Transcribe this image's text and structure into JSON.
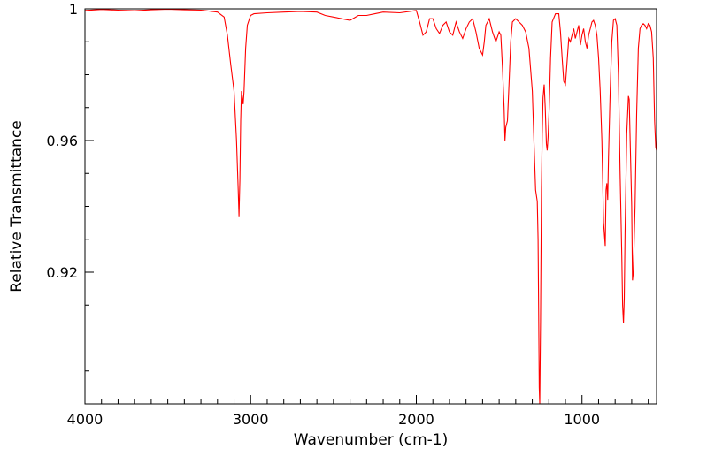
{
  "chart_data": {
    "type": "line",
    "title": "",
    "xlabel": "Wavenumber (cm-1)",
    "ylabel": "Relative Transmittance",
    "xlim": [
      4000,
      550
    ],
    "ylim": [
      0.88,
      1.0
    ],
    "x_reversed": true,
    "x_ticks": [
      {
        "value": 4000,
        "label": "4000"
      },
      {
        "value": 3000,
        "label": "3000"
      },
      {
        "value": 2000,
        "label": "2000"
      },
      {
        "value": 1000,
        "label": "1000"
      }
    ],
    "x_minor_step": 100,
    "y_ticks": [
      {
        "value": 1.0,
        "label": "1"
      },
      {
        "value": 0.96,
        "label": "0.96"
      },
      {
        "value": 0.92,
        "label": "0.92"
      }
    ],
    "y_minor_step": 0.01,
    "grid": false,
    "line_color": "#ff0000",
    "series": [
      {
        "points": [
          [
            4000,
            0.9995
          ],
          [
            3900,
            0.9998
          ],
          [
            3800,
            0.9996
          ],
          [
            3700,
            0.9994
          ],
          [
            3600,
            0.9997
          ],
          [
            3500,
            0.9999
          ],
          [
            3400,
            0.9997
          ],
          [
            3300,
            0.9996
          ],
          [
            3200,
            0.999
          ],
          [
            3160,
            0.9975
          ],
          [
            3140,
            0.992
          ],
          [
            3120,
            0.983
          ],
          [
            3100,
            0.975
          ],
          [
            3085,
            0.96
          ],
          [
            3075,
            0.945
          ],
          [
            3070,
            0.937
          ],
          [
            3065,
            0.948
          ],
          [
            3060,
            0.966
          ],
          [
            3055,
            0.975
          ],
          [
            3050,
            0.973
          ],
          [
            3045,
            0.971
          ],
          [
            3040,
            0.975
          ],
          [
            3030,
            0.988
          ],
          [
            3020,
            0.995
          ],
          [
            3000,
            0.998
          ],
          [
            2980,
            0.9985
          ],
          [
            2900,
            0.9988
          ],
          [
            2800,
            0.999
          ],
          [
            2700,
            0.9992
          ],
          [
            2600,
            0.999
          ],
          [
            2550,
            0.998
          ],
          [
            2500,
            0.9975
          ],
          [
            2450,
            0.997
          ],
          [
            2400,
            0.9965
          ],
          [
            2350,
            0.998
          ],
          [
            2300,
            0.998
          ],
          [
            2250,
            0.9985
          ],
          [
            2200,
            0.999
          ],
          [
            2100,
            0.9988
          ],
          [
            2000,
            0.9995
          ],
          [
            1980,
            0.996
          ],
          [
            1960,
            0.992
          ],
          [
            1940,
            0.993
          ],
          [
            1920,
            0.997
          ],
          [
            1900,
            0.997
          ],
          [
            1880,
            0.994
          ],
          [
            1860,
            0.9925
          ],
          [
            1840,
            0.995
          ],
          [
            1820,
            0.996
          ],
          [
            1800,
            0.993
          ],
          [
            1780,
            0.992
          ],
          [
            1760,
            0.996
          ],
          [
            1740,
            0.993
          ],
          [
            1720,
            0.991
          ],
          [
            1700,
            0.994
          ],
          [
            1680,
            0.996
          ],
          [
            1660,
            0.997
          ],
          [
            1640,
            0.993
          ],
          [
            1620,
            0.988
          ],
          [
            1600,
            0.986
          ],
          [
            1590,
            0.99
          ],
          [
            1580,
            0.995
          ],
          [
            1560,
            0.997
          ],
          [
            1540,
            0.993
          ],
          [
            1520,
            0.99
          ],
          [
            1500,
            0.993
          ],
          [
            1490,
            0.992
          ],
          [
            1480,
            0.982
          ],
          [
            1470,
            0.97
          ],
          [
            1465,
            0.96
          ],
          [
            1460,
            0.964
          ],
          [
            1450,
            0.966
          ],
          [
            1440,
            0.978
          ],
          [
            1430,
            0.99
          ],
          [
            1420,
            0.996
          ],
          [
            1400,
            0.997
          ],
          [
            1380,
            0.996
          ],
          [
            1360,
            0.995
          ],
          [
            1340,
            0.993
          ],
          [
            1320,
            0.988
          ],
          [
            1300,
            0.975
          ],
          [
            1290,
            0.96
          ],
          [
            1280,
            0.945
          ],
          [
            1270,
            0.9415
          ],
          [
            1265,
            0.93
          ],
          [
            1262,
            0.91
          ],
          [
            1258,
            0.885
          ],
          [
            1255,
            0.88
          ],
          [
            1250,
            0.905
          ],
          [
            1245,
            0.945
          ],
          [
            1240,
            0.962
          ],
          [
            1235,
            0.973
          ],
          [
            1228,
            0.977
          ],
          [
            1222,
            0.97
          ],
          [
            1215,
            0.959
          ],
          [
            1210,
            0.957
          ],
          [
            1205,
            0.961
          ],
          [
            1198,
            0.97
          ],
          [
            1190,
            0.985
          ],
          [
            1180,
            0.996
          ],
          [
            1160,
            0.9985
          ],
          [
            1140,
            0.9985
          ],
          [
            1130,
            0.993
          ],
          [
            1120,
            0.985
          ],
          [
            1110,
            0.978
          ],
          [
            1100,
            0.977
          ],
          [
            1090,
            0.984
          ],
          [
            1080,
            0.991
          ],
          [
            1070,
            0.99
          ],
          [
            1060,
            0.992
          ],
          [
            1050,
            0.994
          ],
          [
            1040,
            0.991
          ],
          [
            1030,
            0.993
          ],
          [
            1020,
            0.995
          ],
          [
            1010,
            0.989
          ],
          [
            1000,
            0.992
          ],
          [
            990,
            0.994
          ],
          [
            980,
            0.99
          ],
          [
            970,
            0.988
          ],
          [
            960,
            0.992
          ],
          [
            950,
            0.994
          ],
          [
            940,
            0.996
          ],
          [
            930,
            0.9965
          ],
          [
            920,
            0.995
          ],
          [
            910,
            0.992
          ],
          [
            900,
            0.985
          ],
          [
            890,
            0.975
          ],
          [
            880,
            0.96
          ],
          [
            870,
            0.935
          ],
          [
            860,
            0.928
          ],
          [
            855,
            0.945
          ],
          [
            850,
            0.947
          ],
          [
            845,
            0.942
          ],
          [
            840,
            0.955
          ],
          [
            830,
            0.975
          ],
          [
            820,
            0.99
          ],
          [
            810,
            0.9965
          ],
          [
            800,
            0.997
          ],
          [
            790,
            0.995
          ],
          [
            780,
            0.98
          ],
          [
            770,
            0.95
          ],
          [
            760,
            0.925
          ],
          [
            755,
            0.91
          ],
          [
            750,
            0.9045
          ],
          [
            745,
            0.912
          ],
          [
            740,
            0.932
          ],
          [
            730,
            0.962
          ],
          [
            720,
            0.9735
          ],
          [
            715,
            0.9725
          ],
          [
            710,
            0.962
          ],
          [
            700,
            0.94
          ],
          [
            695,
            0.9175
          ],
          [
            690,
            0.92
          ],
          [
            680,
            0.94
          ],
          [
            670,
            0.968
          ],
          [
            660,
            0.988
          ],
          [
            650,
            0.994
          ],
          [
            640,
            0.995
          ],
          [
            630,
            0.9955
          ],
          [
            620,
            0.995
          ],
          [
            610,
            0.994
          ],
          [
            600,
            0.9955
          ],
          [
            590,
            0.995
          ],
          [
            580,
            0.993
          ],
          [
            570,
            0.985
          ],
          [
            562,
            0.966
          ],
          [
            555,
            0.958
          ],
          [
            550,
            0.957
          ]
        ]
      }
    ]
  }
}
